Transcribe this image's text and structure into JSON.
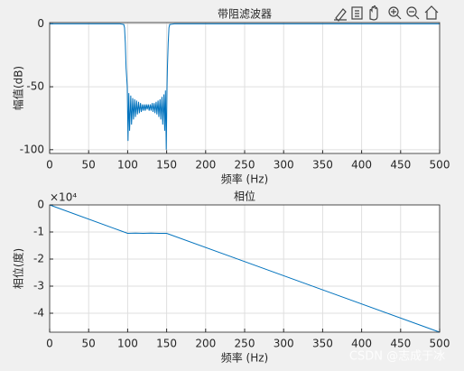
{
  "chart_data": [
    {
      "type": "line",
      "title": "带阻滤波器",
      "xlabel": "频率 (Hz)",
      "ylabel": "幅值(dB)",
      "color": "#0072bd",
      "grid": true,
      "xlim": [
        0,
        500
      ],
      "xticks": [
        0,
        50,
        100,
        150,
        200,
        250,
        300,
        350,
        400,
        450,
        500
      ],
      "ylim": [
        -103,
        1
      ],
      "yticks": [
        -100,
        -50,
        0
      ],
      "x": [
        0,
        50,
        90,
        95,
        96,
        97,
        98,
        99.5,
        100.5,
        101.5,
        102.5,
        104,
        105,
        106.5,
        107.5,
        109,
        110,
        111.5,
        112.5,
        114,
        115,
        116.5,
        117.5,
        119,
        120,
        121.5,
        122.5,
        124,
        125,
        126.5,
        127.5,
        129,
        130,
        131.5,
        132.5,
        134,
        135,
        136.5,
        137.5,
        139,
        140,
        141.5,
        142.5,
        144,
        145,
        146.5,
        147.5,
        148.5,
        149.5,
        150.5,
        151,
        152,
        153,
        154,
        160,
        500
      ],
      "values": [
        0,
        0,
        0,
        -0.5,
        -3,
        -15,
        -35,
        -50,
        -93,
        -55,
        -85,
        -57,
        -80,
        -59,
        -76,
        -60,
        -74,
        -61,
        -72,
        -62,
        -71,
        -63,
        -70,
        -64,
        -69,
        -64,
        -69,
        -64,
        -68,
        -64,
        -69,
        -64,
        -69,
        -63,
        -70,
        -63,
        -71,
        -62,
        -72,
        -61,
        -74,
        -60,
        -76,
        -58,
        -80,
        -56,
        -85,
        -53,
        -100,
        -50,
        -35,
        -15,
        -3,
        -0.5,
        0,
        0
      ]
    },
    {
      "type": "line",
      "title": "相位",
      "xlabel": "频率 (Hz)",
      "ylabel": "相位(度)",
      "y_exponent": "×10⁴",
      "color": "#0072bd",
      "grid": true,
      "xlim": [
        0,
        500
      ],
      "xticks": [
        0,
        50,
        100,
        150,
        200,
        250,
        300,
        350,
        400,
        450,
        500
      ],
      "ylim": [
        -4.7,
        0
      ],
      "yticks": [
        -4,
        -3,
        -2,
        -1,
        0
      ],
      "x": [
        0,
        100,
        110,
        120,
        130,
        140,
        150,
        500
      ],
      "values": [
        0,
        -1.05,
        -1.04,
        -1.05,
        -1.04,
        -1.05,
        -1.05,
        -4.7
      ]
    }
  ],
  "watermark": "CSDN @志成于冰"
}
